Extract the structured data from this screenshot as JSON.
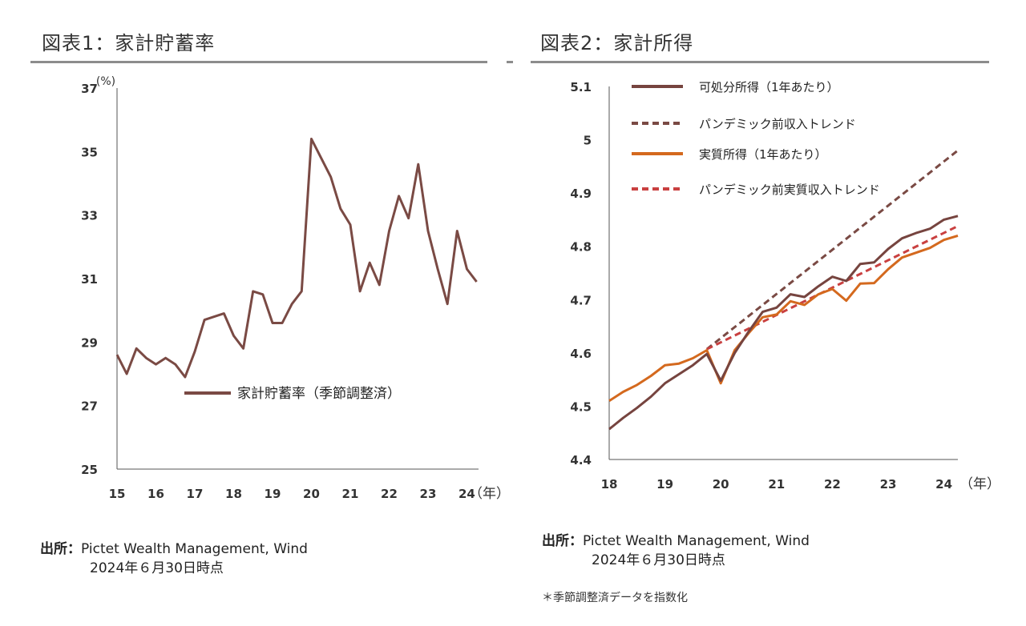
{
  "panels": {
    "left": {
      "title": "図表1：家計貯蓄率",
      "source_label": "出所：",
      "source_text": "Pictet Wealth Management, Wind",
      "source_date": "2024年６月30日時点"
    },
    "right": {
      "title": "図表2：家計所得",
      "source_label": "出所：",
      "source_text": "Pictet Wealth Management, Wind",
      "source_date": "2024年６月30日時点",
      "note": "＊季節調整済データを指数化"
    }
  },
  "colors": {
    "savings": "#7a4a44",
    "disposable": "#76443f",
    "disposable_trend": "#7a4a44",
    "real": "#d4691e",
    "real_trend": "#c94040",
    "rule": "#8c8c8c",
    "axis": "#555555"
  },
  "chart_data": [
    {
      "type": "line",
      "title": "図表1：家計貯蓄率",
      "yunit": "(%)",
      "xunit": "（年）",
      "ylim": [
        25,
        37
      ],
      "yticks": [
        25,
        27,
        29,
        31,
        33,
        35,
        37
      ],
      "xlim": [
        15,
        24.3
      ],
      "xticks": [
        15,
        16,
        17,
        18,
        19,
        20,
        21,
        22,
        23,
        24
      ],
      "grid": false,
      "legend_position": "center-bottom",
      "series": [
        {
          "name": "家計貯蓄率（季節調整済）",
          "x": [
            15,
            15.25,
            15.5,
            15.75,
            16,
            16.25,
            16.5,
            16.75,
            17,
            17.25,
            17.5,
            17.75,
            18,
            18.25,
            18.5,
            18.75,
            19,
            19.25,
            19.5,
            19.75,
            20,
            20.25,
            20.5,
            20.75,
            21,
            21.25,
            21.5,
            21.75,
            22,
            22.25,
            22.5,
            22.75,
            23,
            23.25,
            23.5,
            23.75,
            24,
            24.25
          ],
          "values": [
            28.6,
            28.0,
            28.8,
            28.5,
            28.3,
            28.5,
            28.3,
            27.9,
            28.7,
            29.7,
            29.8,
            29.9,
            29.2,
            28.8,
            30.6,
            30.5,
            29.6,
            29.6,
            30.2,
            30.6,
            35.4,
            34.8,
            34.2,
            33.2,
            32.7,
            30.6,
            31.5,
            30.8,
            32.5,
            33.6,
            32.9,
            34.6,
            32.5,
            31.3,
            30.2,
            32.5,
            31.3,
            30.9
          ]
        }
      ]
    },
    {
      "type": "line",
      "title": "図表2：家計所得",
      "xunit": "（年）",
      "ylim": [
        4.4,
        5.1
      ],
      "yticks": [
        4.4,
        4.5,
        4.6,
        4.7,
        4.8,
        4.9,
        5,
        5.1
      ],
      "xlim": [
        18,
        24.25
      ],
      "xticks": [
        18,
        19,
        20,
        21,
        22,
        23,
        24
      ],
      "grid": false,
      "legend_position": "top-left",
      "series": [
        {
          "name": "可処分所得（1年あたり）",
          "style": "solid",
          "x": [
            18,
            18.25,
            18.5,
            18.75,
            19,
            19.25,
            19.5,
            19.75,
            20,
            20.25,
            20.5,
            20.75,
            21,
            21.25,
            21.5,
            21.75,
            22,
            22.25,
            22.5,
            22.75,
            23,
            23.25,
            23.5,
            23.75,
            24,
            24.25
          ],
          "values": [
            4.457,
            4.478,
            4.497,
            4.518,
            4.543,
            4.56,
            4.577,
            4.598,
            4.548,
            4.6,
            4.64,
            4.677,
            4.685,
            4.71,
            4.705,
            4.725,
            4.743,
            4.735,
            4.767,
            4.77,
            4.795,
            4.815,
            4.825,
            4.833,
            4.85,
            4.857
          ]
        },
        {
          "name": "パンデミック前収入トレンド",
          "style": "dashed",
          "x": [
            19.75,
            24.25
          ],
          "values": [
            4.607,
            4.98
          ]
        },
        {
          "name": "実質所得（1年あたり）",
          "style": "solid",
          "x": [
            18,
            18.25,
            18.5,
            18.75,
            19,
            19.25,
            19.5,
            19.75,
            20,
            20.25,
            20.5,
            20.75,
            21,
            21.25,
            21.5,
            21.75,
            22,
            22.25,
            22.5,
            22.75,
            23,
            23.25,
            23.5,
            23.75,
            24,
            24.25
          ],
          "values": [
            4.51,
            4.527,
            4.54,
            4.557,
            4.577,
            4.58,
            4.59,
            4.605,
            4.543,
            4.605,
            4.637,
            4.667,
            4.672,
            4.697,
            4.69,
            4.71,
            4.72,
            4.698,
            4.73,
            4.731,
            4.757,
            4.779,
            4.788,
            4.797,
            4.812,
            4.82
          ]
        },
        {
          "name": "パンデミック前実質収入トレンド",
          "style": "dashed",
          "x": [
            19.75,
            24.25
          ],
          "values": [
            4.607,
            4.838
          ]
        }
      ]
    }
  ]
}
